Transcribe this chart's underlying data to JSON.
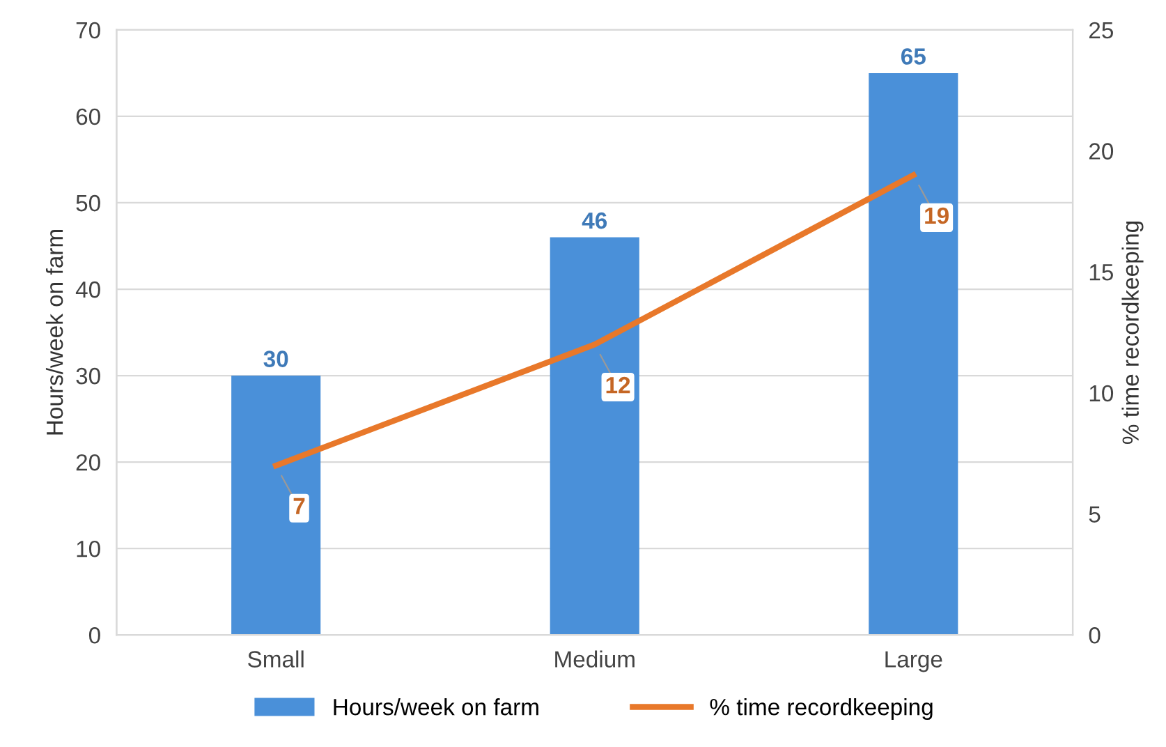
{
  "chart_data": {
    "type": "bar",
    "ylabel": "Hours/week on farm",
    "y2label": "% time recordkeeping",
    "categories": [
      "Small",
      "Medium",
      "Large"
    ],
    "series": [
      {
        "name": "Hours/week on farm",
        "color": "#4a90d9",
        "values": [
          30,
          46,
          65
        ]
      },
      {
        "name": "% time recordkeeping",
        "type": "line",
        "axis": "y2",
        "color": "#e8782a",
        "values": [
          7,
          12,
          19
        ]
      }
    ],
    "ylim": [
      0,
      70
    ],
    "yticks": [
      0,
      10,
      20,
      30,
      40,
      50,
      60,
      70
    ],
    "y2lim": [
      0,
      25
    ],
    "y2ticks": [
      0,
      5,
      10,
      15,
      20,
      25
    ],
    "grid": "y",
    "legend": "bottom",
    "data_labels": true,
    "marker": "none",
    "line_style": "solid"
  }
}
